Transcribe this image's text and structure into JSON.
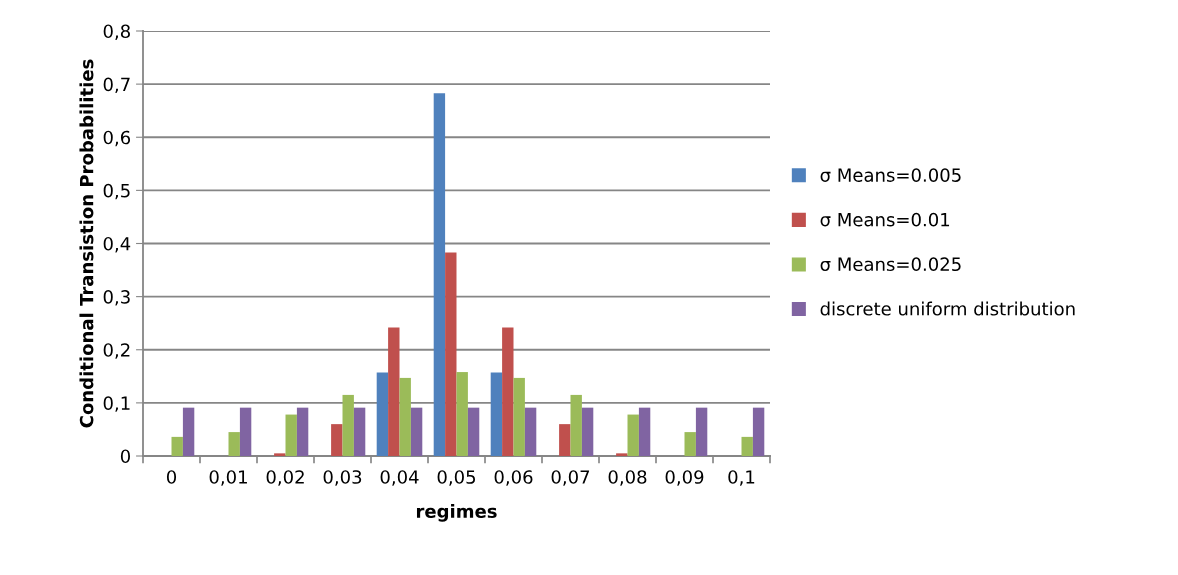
{
  "chart_data": {
    "type": "bar",
    "xlabel": "regimes",
    "ylabel": "Conditional Transistion Probabilities",
    "categories": [
      "0",
      "0,01",
      "0,02",
      "0,03",
      "0,04",
      "0,05",
      "0,06",
      "0,07",
      "0,08",
      "0,09",
      "0,1"
    ],
    "series": [
      {
        "name": "σ Means=0.005",
        "color": "#4f81bd",
        "values": [
          0,
          0,
          0,
          0,
          0.157,
          0.683,
          0.157,
          0,
          0,
          0,
          0
        ]
      },
      {
        "name": "σ Means=0.01",
        "color": "#c0504d",
        "values": [
          0,
          0,
          0.005,
          0.06,
          0.242,
          0.383,
          0.242,
          0.06,
          0.005,
          0,
          0
        ]
      },
      {
        "name": "σ Means=0.025",
        "color": "#9bbb59",
        "values": [
          0.036,
          0.045,
          0.078,
          0.115,
          0.147,
          0.158,
          0.147,
          0.115,
          0.078,
          0.045,
          0.036
        ]
      },
      {
        "name": "discrete uniform distribution",
        "color": "#8064a2",
        "values": [
          0.091,
          0.091,
          0.091,
          0.091,
          0.091,
          0.091,
          0.091,
          0.091,
          0.091,
          0.091,
          0.091
        ]
      }
    ],
    "ylim": [
      0,
      0.8
    ],
    "yticks": [
      0,
      {
        "value": 0.1,
        "label": "0,1"
      },
      {
        "value": 0.2,
        "label": "0,2"
      },
      {
        "value": 0.3,
        "label": "0,3"
      },
      {
        "value": 0.4,
        "label": "0,4"
      },
      {
        "value": 0.5,
        "label": "0,5"
      },
      {
        "value": 0.6,
        "label": "0,6"
      },
      {
        "value": 0.7,
        "label": "0,7"
      },
      {
        "value": 0.8,
        "label": "0,8"
      }
    ],
    "grid": "y",
    "legend": "right"
  }
}
